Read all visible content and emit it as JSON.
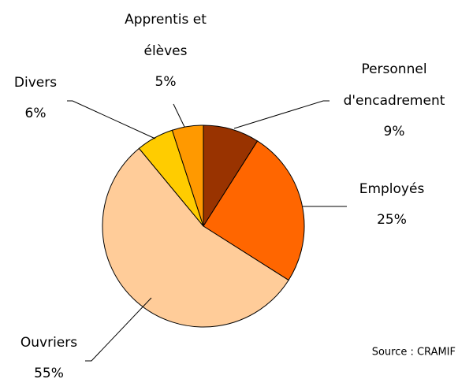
{
  "chart_data": {
    "type": "pie",
    "categories": [
      "Personnel d'encadrement",
      "Employés",
      "Ouvriers",
      "Divers",
      "Apprentis et élèves"
    ],
    "values": [
      9,
      25,
      55,
      6,
      5
    ],
    "value_labels": [
      "9%",
      "25%",
      "55%",
      "6%",
      "5%"
    ],
    "colors": [
      "#993300",
      "#ff6600",
      "#ffcc99",
      "#ffcc00",
      "#ff9900"
    ],
    "source": "Source : CRAMIF"
  }
}
